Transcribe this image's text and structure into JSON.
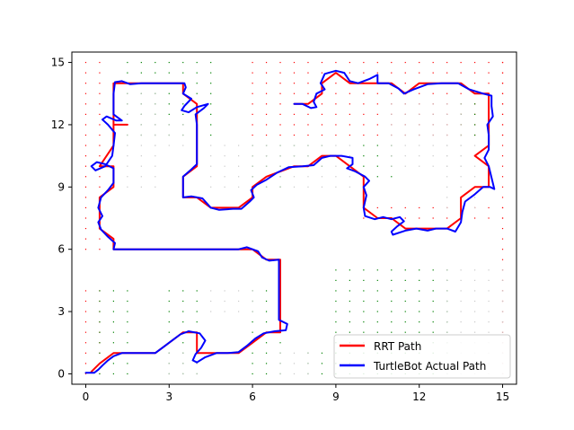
{
  "chart_data": {
    "type": "line",
    "title": "",
    "xlabel": "",
    "ylabel": "",
    "xlim": [
      -0.5,
      15.5
    ],
    "ylim": [
      -0.5,
      15.5
    ],
    "xticks": [
      0,
      3,
      6,
      9,
      12,
      15
    ],
    "yticks": [
      0,
      3,
      6,
      9,
      12,
      15
    ],
    "grid": false,
    "legend": "bottom-right",
    "series": [
      {
        "name": "RRT Path",
        "color": "#ff0000",
        "width": 2,
        "points": [
          [
            0.2,
            0.1
          ],
          [
            0.5,
            0.5
          ],
          [
            1.0,
            1.0
          ],
          [
            2.5,
            1.0
          ],
          [
            3.0,
            1.5
          ],
          [
            3.5,
            2.0
          ],
          [
            4.0,
            2.0
          ],
          [
            4.0,
            1.0
          ],
          [
            5.5,
            1.0
          ],
          [
            6.0,
            1.5
          ],
          [
            6.5,
            2.0
          ],
          [
            7.0,
            2.0
          ],
          [
            7.0,
            5.5
          ],
          [
            6.5,
            5.5
          ],
          [
            6.0,
            6.0
          ],
          [
            1.0,
            6.0
          ],
          [
            1.0,
            6.5
          ],
          [
            0.5,
            7.0
          ],
          [
            0.5,
            8.5
          ],
          [
            1.0,
            9.0
          ],
          [
            1.0,
            10.0
          ],
          [
            0.5,
            10.0
          ],
          [
            1.0,
            11.0
          ],
          [
            1.0,
            12.0
          ],
          [
            1.5,
            12.0
          ],
          [
            1.0,
            12.0
          ],
          [
            1.0,
            14.0
          ],
          [
            3.5,
            14.0
          ],
          [
            3.5,
            13.5
          ],
          [
            4.0,
            13.0
          ],
          [
            4.0,
            10.0
          ],
          [
            3.5,
            9.5
          ],
          [
            3.5,
            8.5
          ],
          [
            4.0,
            8.5
          ],
          [
            4.5,
            8.0
          ],
          [
            5.5,
            8.0
          ],
          [
            6.0,
            8.5
          ],
          [
            6.0,
            9.0
          ],
          [
            6.5,
            9.5
          ],
          [
            7.5,
            10.0
          ],
          [
            8.0,
            10.0
          ],
          [
            8.5,
            10.5
          ],
          [
            9.0,
            10.5
          ],
          [
            9.5,
            10.0
          ],
          [
            10.0,
            9.5
          ],
          [
            10.0,
            8.0
          ],
          [
            10.5,
            7.5
          ],
          [
            11.0,
            7.5
          ],
          [
            11.5,
            7.0
          ],
          [
            12.5,
            7.0
          ],
          [
            13.0,
            7.0
          ],
          [
            13.5,
            7.5
          ],
          [
            13.5,
            8.5
          ],
          [
            14.0,
            9.0
          ],
          [
            14.5,
            9.0
          ],
          [
            14.5,
            10.0
          ],
          [
            14.0,
            10.5
          ],
          [
            14.5,
            11.0
          ],
          [
            14.5,
            13.5
          ],
          [
            14.0,
            13.5
          ],
          [
            13.5,
            14.0
          ],
          [
            12.0,
            14.0
          ],
          [
            11.5,
            13.5
          ],
          [
            11.0,
            14.0
          ],
          [
            9.5,
            14.0
          ],
          [
            9.0,
            14.5
          ],
          [
            8.5,
            14.0
          ],
          [
            8.5,
            13.5
          ],
          [
            8.0,
            13.0
          ],
          [
            7.5,
            13.0
          ]
        ]
      },
      {
        "name": "TurtleBot Actual Path",
        "color": "#0000ff",
        "width": 2,
        "points": [
          [
            0.0,
            0.05
          ],
          [
            0.15,
            0.05
          ],
          [
            0.3,
            0.05
          ],
          [
            0.45,
            0.2
          ],
          [
            0.6,
            0.4
          ],
          [
            0.8,
            0.65
          ],
          [
            1.0,
            0.85
          ],
          [
            1.3,
            1.0
          ],
          [
            1.7,
            1.0
          ],
          [
            2.1,
            1.0
          ],
          [
            2.5,
            1.0
          ],
          [
            2.8,
            1.3
          ],
          [
            3.1,
            1.6
          ],
          [
            3.4,
            1.9
          ],
          [
            3.7,
            2.05
          ],
          [
            4.1,
            1.95
          ],
          [
            4.3,
            1.6
          ],
          [
            4.15,
            1.25
          ],
          [
            3.95,
            0.95
          ],
          [
            3.85,
            0.65
          ],
          [
            4.0,
            0.55
          ],
          [
            4.3,
            0.8
          ],
          [
            4.7,
            1.0
          ],
          [
            5.1,
            1.0
          ],
          [
            5.5,
            1.05
          ],
          [
            5.8,
            1.35
          ],
          [
            6.1,
            1.7
          ],
          [
            6.4,
            1.95
          ],
          [
            6.8,
            2.05
          ],
          [
            7.2,
            2.1
          ],
          [
            7.25,
            2.4
          ],
          [
            6.95,
            2.6
          ],
          [
            6.95,
            3.2
          ],
          [
            6.95,
            4.0
          ],
          [
            6.95,
            5.0
          ],
          [
            6.95,
            5.5
          ],
          [
            6.6,
            5.45
          ],
          [
            6.35,
            5.6
          ],
          [
            6.2,
            5.9
          ],
          [
            5.8,
            6.1
          ],
          [
            5.5,
            6.0
          ],
          [
            4.5,
            6.0
          ],
          [
            3.0,
            6.0
          ],
          [
            1.5,
            6.0
          ],
          [
            1.0,
            6.0
          ],
          [
            1.05,
            6.3
          ],
          [
            0.8,
            6.6
          ],
          [
            0.55,
            6.95
          ],
          [
            0.45,
            7.3
          ],
          [
            0.6,
            7.6
          ],
          [
            0.45,
            8.0
          ],
          [
            0.55,
            8.5
          ],
          [
            0.8,
            8.85
          ],
          [
            1.0,
            9.2
          ],
          [
            1.0,
            9.9
          ],
          [
            0.7,
            10.1
          ],
          [
            0.4,
            10.2
          ],
          [
            0.2,
            10.0
          ],
          [
            0.35,
            9.8
          ],
          [
            0.7,
            10.0
          ],
          [
            0.95,
            10.5
          ],
          [
            1.0,
            11.0
          ],
          [
            1.05,
            11.6
          ],
          [
            0.8,
            12.0
          ],
          [
            0.6,
            12.25
          ],
          [
            0.75,
            12.4
          ],
          [
            1.1,
            12.2
          ],
          [
            1.3,
            12.2
          ],
          [
            1.0,
            12.5
          ],
          [
            1.0,
            13.5
          ],
          [
            1.05,
            14.05
          ],
          [
            1.3,
            14.1
          ],
          [
            1.6,
            13.95
          ],
          [
            2.0,
            14.0
          ],
          [
            3.0,
            14.0
          ],
          [
            3.55,
            14.0
          ],
          [
            3.6,
            13.8
          ],
          [
            3.5,
            13.5
          ],
          [
            3.8,
            13.25
          ],
          [
            3.55,
            12.9
          ],
          [
            3.45,
            12.7
          ],
          [
            3.7,
            12.6
          ],
          [
            4.0,
            12.85
          ],
          [
            4.4,
            13.0
          ],
          [
            4.25,
            12.8
          ],
          [
            3.95,
            12.5
          ],
          [
            4.0,
            12.0
          ],
          [
            4.0,
            11.0
          ],
          [
            4.0,
            10.1
          ],
          [
            3.8,
            9.85
          ],
          [
            3.5,
            9.5
          ],
          [
            3.5,
            9.0
          ],
          [
            3.5,
            8.5
          ],
          [
            3.8,
            8.55
          ],
          [
            4.2,
            8.45
          ],
          [
            4.5,
            8.0
          ],
          [
            4.8,
            7.9
          ],
          [
            5.3,
            7.95
          ],
          [
            5.6,
            7.95
          ],
          [
            5.9,
            8.3
          ],
          [
            6.05,
            8.5
          ],
          [
            5.95,
            8.85
          ],
          [
            6.15,
            9.1
          ],
          [
            6.5,
            9.35
          ],
          [
            6.9,
            9.7
          ],
          [
            7.3,
            9.95
          ],
          [
            7.8,
            10.0
          ],
          [
            8.2,
            10.05
          ],
          [
            8.5,
            10.4
          ],
          [
            8.8,
            10.5
          ],
          [
            9.2,
            10.5
          ],
          [
            9.6,
            10.4
          ],
          [
            9.6,
            10.1
          ],
          [
            9.4,
            9.9
          ],
          [
            9.7,
            9.75
          ],
          [
            10.05,
            9.5
          ],
          [
            10.2,
            9.3
          ],
          [
            10.0,
            9.0
          ],
          [
            10.1,
            8.6
          ],
          [
            10.0,
            8.0
          ],
          [
            10.05,
            7.6
          ],
          [
            10.4,
            7.45
          ],
          [
            10.7,
            7.55
          ],
          [
            11.0,
            7.45
          ],
          [
            11.3,
            7.55
          ],
          [
            11.45,
            7.35
          ],
          [
            11.2,
            7.1
          ],
          [
            11.0,
            6.85
          ],
          [
            11.05,
            6.7
          ],
          [
            11.5,
            6.9
          ],
          [
            11.9,
            7.0
          ],
          [
            12.3,
            6.9
          ],
          [
            12.6,
            7.0
          ],
          [
            13.0,
            7.0
          ],
          [
            13.3,
            6.85
          ],
          [
            13.5,
            7.3
          ],
          [
            13.55,
            7.8
          ],
          [
            13.65,
            8.3
          ],
          [
            14.0,
            8.65
          ],
          [
            14.3,
            9.0
          ],
          [
            14.55,
            9.0
          ],
          [
            14.7,
            8.9
          ],
          [
            14.6,
            9.45
          ],
          [
            14.5,
            10.0
          ],
          [
            14.35,
            10.4
          ],
          [
            14.5,
            10.8
          ],
          [
            14.5,
            11.5
          ],
          [
            14.45,
            12.0
          ],
          [
            14.65,
            12.4
          ],
          [
            14.6,
            12.9
          ],
          [
            14.6,
            13.4
          ],
          [
            14.3,
            13.5
          ],
          [
            13.8,
            13.7
          ],
          [
            13.4,
            14.0
          ],
          [
            12.8,
            14.0
          ],
          [
            12.3,
            13.95
          ],
          [
            11.8,
            13.7
          ],
          [
            11.45,
            13.5
          ],
          [
            11.25,
            13.75
          ],
          [
            10.9,
            14.0
          ],
          [
            10.5,
            14.0
          ],
          [
            10.5,
            14.4
          ],
          [
            10.2,
            14.2
          ],
          [
            9.8,
            14.0
          ],
          [
            9.5,
            14.1
          ],
          [
            9.3,
            14.5
          ],
          [
            9.0,
            14.6
          ],
          [
            8.6,
            14.45
          ],
          [
            8.45,
            14.0
          ],
          [
            8.6,
            13.7
          ],
          [
            8.3,
            13.5
          ],
          [
            8.2,
            13.1
          ],
          [
            8.3,
            12.85
          ],
          [
            8.1,
            12.8
          ],
          [
            7.8,
            13.0
          ],
          [
            7.5,
            13.0
          ]
        ]
      }
    ],
    "scatter_series": [
      {
        "color": "#ff0000",
        "rects": [
          [
            0,
            6,
            0.5,
            15
          ],
          [
            0,
            0,
            0.5,
            4
          ],
          [
            6,
            11.5,
            15,
            15
          ],
          [
            10,
            7.5,
            15,
            8
          ],
          [
            15,
            0,
            15,
            15
          ]
        ]
      },
      {
        "color": "#008000",
        "rects": [
          [
            0.5,
            0,
            1.5,
            4
          ],
          [
            1.5,
            11.5,
            4.5,
            15
          ],
          [
            3,
            0,
            4,
            4
          ],
          [
            6,
            0,
            7,
            4
          ],
          [
            8,
            0,
            9,
            1
          ],
          [
            9,
            0,
            13,
            5
          ],
          [
            6,
            9,
            7,
            11
          ],
          [
            7.5,
            10,
            8.5,
            11
          ],
          [
            10,
            9.5,
            11,
            11
          ],
          [
            13.5,
            11.5,
            14,
            13
          ]
        ]
      },
      {
        "color": "#c8c8c8",
        "rects": [
          [
            1.5,
            9,
            2.5,
            14
          ],
          [
            2.5,
            11,
            4,
            12
          ],
          [
            4.5,
            9,
            6,
            11
          ],
          [
            6.5,
            9,
            9.5,
            11
          ],
          [
            11,
            10,
            13.5,
            13
          ],
          [
            13,
            8,
            14,
            11
          ],
          [
            13,
            0,
            15,
            5
          ],
          [
            3,
            0,
            4,
            1
          ],
          [
            4.5,
            3,
            6,
            4
          ],
          [
            7,
            0,
            8,
            1
          ]
        ]
      }
    ]
  },
  "legend": {
    "items": [
      {
        "label": "RRT Path",
        "color": "#ff0000"
      },
      {
        "label": "TurtleBot Actual Path",
        "color": "#0000ff"
      }
    ]
  }
}
